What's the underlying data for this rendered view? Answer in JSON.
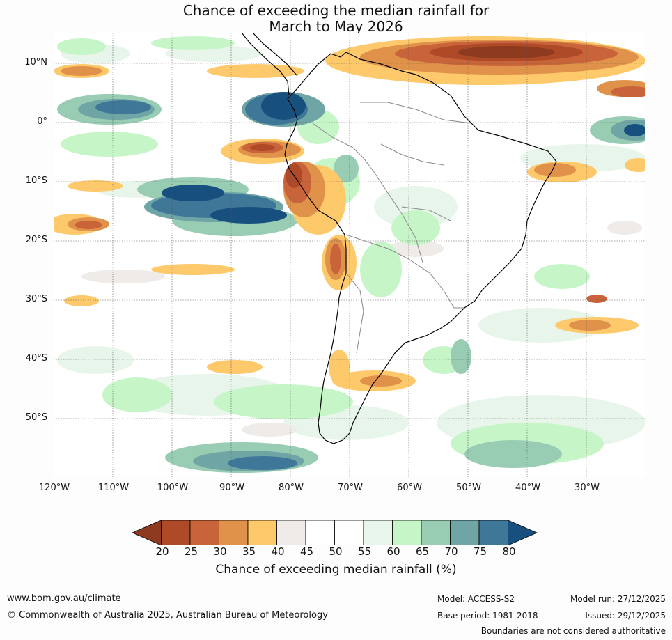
{
  "title": {
    "line1": "Chance of exceeding the median rainfall for",
    "line2": "March to May 2026"
  },
  "map": {
    "region": "South America and surrounding oceans",
    "lat_labels": [
      "10°N",
      "0°",
      "10°S",
      "20°S",
      "30°S",
      "40°S",
      "50°S"
    ],
    "lon_labels": [
      "120°W",
      "110°W",
      "100°W",
      "90°W",
      "80°W",
      "70°W",
      "60°W",
      "50°W",
      "40°W",
      "30°W"
    ],
    "lon_range": [
      -120,
      -20
    ],
    "lat_range": [
      -60,
      15
    ]
  },
  "colorbar": {
    "ticks": [
      "20",
      "25",
      "30",
      "35",
      "40",
      "45",
      "50",
      "55",
      "60",
      "65",
      "70",
      "75",
      "80"
    ],
    "colors": [
      "#8e3a1f",
      "#ae4a27",
      "#c9643a",
      "#e0924a",
      "#fdc96b",
      "#eeebe8",
      "#ffffff",
      "#ffffff",
      "#e8f5ea",
      "#c6f6c8",
      "#98cdb3",
      "#6fa5a5",
      "#3f7799",
      "#17507f"
    ],
    "label": "Chance of exceeding median rainfall (%)"
  },
  "footer": {
    "website": "www.bom.gov.au/climate",
    "copyright": "© Commonwealth of Australia 2025, Australian Bureau of Meteorology",
    "model": "Model: ACCESS-S2",
    "base_period": "Base period: 1981-2018",
    "model_run": "Model run: 27/12/2025",
    "issued": "Issued: 29/12/2025",
    "disclaimer": "Boundaries are not considered authoritative"
  }
}
